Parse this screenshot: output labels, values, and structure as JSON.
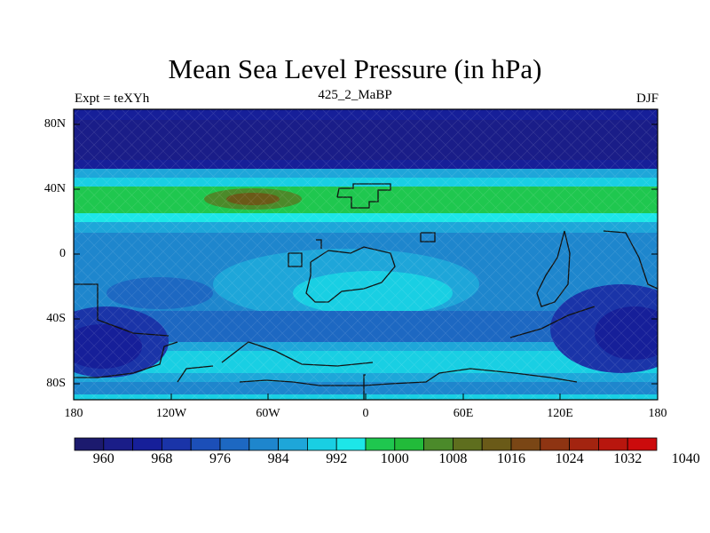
{
  "title": "Mean Sea Level Pressure (in hPa)",
  "left_string": "Expt = teXYh",
  "center_string": "425_2_MaBP",
  "right_string": "DJF",
  "axes": {
    "lat_labels": [
      "80N",
      "40N",
      "0",
      "40S",
      "80S"
    ],
    "lon_labels": [
      "180",
      "120W",
      "60W",
      "0",
      "60E",
      "120E",
      "180"
    ]
  },
  "colorbar": {
    "labels": [
      "960",
      "968",
      "976",
      "984",
      "992",
      "1000",
      "1008",
      "1016",
      "1024",
      "1032",
      "1040"
    ],
    "colors": [
      "#1c1a6e",
      "#1a1d88",
      "#161f99",
      "#1a34a8",
      "#1c4fb8",
      "#1d68c2",
      "#1e86cd",
      "#1ea6d9",
      "#19cfe3",
      "#1de6e8",
      "#1fc74f",
      "#22bb3a",
      "#4b8a2a",
      "#5e6e1e",
      "#6a5a18",
      "#7a4615",
      "#8e3412",
      "#a32410",
      "#b8160e",
      "#cc0b0c"
    ]
  }
}
